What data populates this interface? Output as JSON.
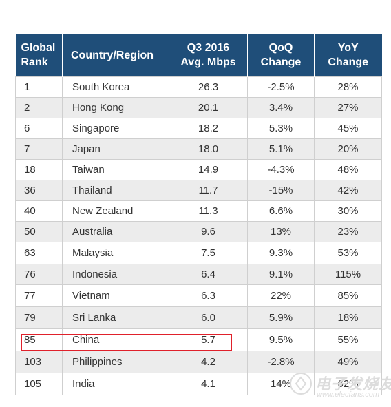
{
  "headers": {
    "rank": [
      "Global",
      "Rank"
    ],
    "country": "Country/Region",
    "mbps": [
      "Q3 2016",
      "Avg. Mbps"
    ],
    "qoq": [
      "QoQ",
      "Change"
    ],
    "yoy": [
      "YoY",
      "Change"
    ]
  },
  "rows": [
    {
      "rank": "1",
      "country": "South Korea",
      "mbps": "26.3",
      "qoq": "-2.5%",
      "yoy": "28%"
    },
    {
      "rank": "2",
      "country": "Hong Kong",
      "mbps": "20.1",
      "qoq": "3.4%",
      "yoy": "27%"
    },
    {
      "rank": "6",
      "country": "Singapore",
      "mbps": "18.2",
      "qoq": "5.3%",
      "yoy": "45%"
    },
    {
      "rank": "7",
      "country": "Japan",
      "mbps": "18.0",
      "qoq": "5.1%",
      "yoy": "20%"
    },
    {
      "rank": "18",
      "country": "Taiwan",
      "mbps": "14.9",
      "qoq": "-4.3%",
      "yoy": "48%"
    },
    {
      "rank": "36",
      "country": "Thailand",
      "mbps": "11.7",
      "qoq": "-15%",
      "yoy": "42%"
    },
    {
      "rank": "40",
      "country": "New Zealand",
      "mbps": "11.3",
      "qoq": "6.6%",
      "yoy": "30%"
    },
    {
      "rank": "50",
      "country": "Australia",
      "mbps": "9.6",
      "qoq": "13%",
      "yoy": "23%"
    },
    {
      "rank": "63",
      "country": "Malaysia",
      "mbps": "7.5",
      "qoq": "9.3%",
      "yoy": "53%"
    },
    {
      "rank": "76",
      "country": "Indonesia",
      "mbps": "6.4",
      "qoq": "9.1%",
      "yoy": "115%"
    },
    {
      "rank": "77",
      "country": "Vietnam",
      "mbps": "6.3",
      "qoq": "22%",
      "yoy": "85%"
    },
    {
      "rank": "79",
      "country": "Sri Lanka",
      "mbps": "6.0",
      "qoq": "5.9%",
      "yoy": "18%"
    },
    {
      "rank": "85",
      "country": "China",
      "mbps": "5.7",
      "qoq": "9.5%",
      "yoy": "55%"
    },
    {
      "rank": "103",
      "country": "Philippines",
      "mbps": "4.2",
      "qoq": "-2.8%",
      "yoy": "49%"
    },
    {
      "rank": "105",
      "country": "India",
      "mbps": "4.1",
      "qoq": "14%",
      "yoy": "62%"
    }
  ],
  "highlighted_country": "China",
  "watermark": {
    "text": "电子发烧友",
    "url": "www.elecfans.com"
  },
  "colors": {
    "header_bg": "#1f4e79",
    "stripe": "#ececec",
    "highlight": "#e0212b"
  }
}
